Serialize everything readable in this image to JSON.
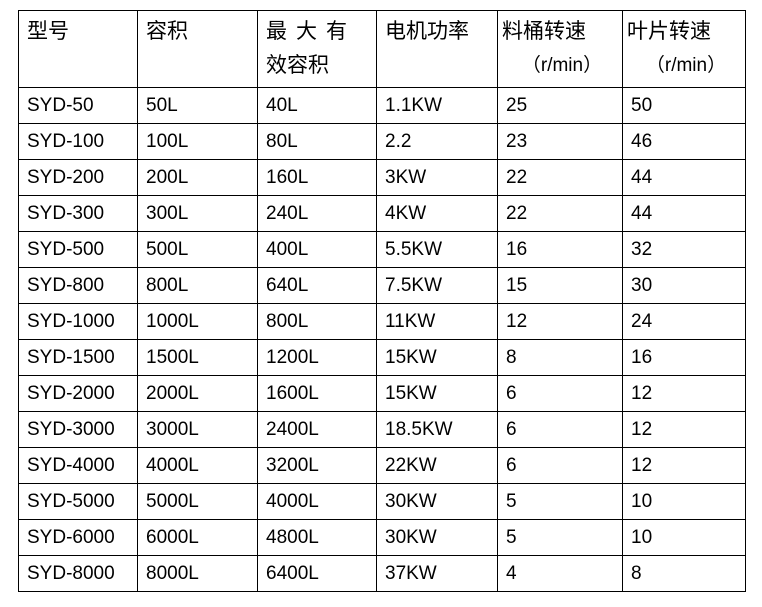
{
  "headers": [
    {
      "line1": "型号"
    },
    {
      "line1": "容积"
    },
    {
      "line1": "最大有",
      "line2": "效容积"
    },
    {
      "line1": "电机功率"
    },
    {
      "line1": "料桶转速",
      "line2": "（r/min）"
    },
    {
      "line1": "叶片转速",
      "line2": "（r/min）"
    }
  ],
  "rows": [
    [
      "SYD-50",
      "50L",
      "40L",
      "1.1KW",
      "25",
      "50"
    ],
    [
      "SYD-100",
      "100L",
      "80L",
      "2.2",
      "23",
      "46"
    ],
    [
      "SYD-200",
      "200L",
      "160L",
      "3KW",
      "22",
      "44"
    ],
    [
      "SYD-300",
      "300L",
      "240L",
      "4KW",
      "22",
      "44"
    ],
    [
      "SYD-500",
      "500L",
      "400L",
      "5.5KW",
      "16",
      "32"
    ],
    [
      "SYD-800",
      "800L",
      "640L",
      "7.5KW",
      "15",
      "30"
    ],
    [
      "SYD-1000",
      "1000L",
      "800L",
      "11KW",
      "12",
      "24"
    ],
    [
      "SYD-1500",
      "1500L",
      "1200L",
      "15KW",
      "8",
      "16"
    ],
    [
      "SYD-2000",
      "2000L",
      "1600L",
      "15KW",
      "6",
      "12"
    ],
    [
      "SYD-3000",
      "3000L",
      "2400L",
      "18.5KW",
      "6",
      "12"
    ],
    [
      "SYD-4000",
      "4000L",
      "3200L",
      "22KW",
      "6",
      "12"
    ],
    [
      "SYD-5000",
      "5000L",
      "4000L",
      "30KW",
      "5",
      "10"
    ],
    [
      "SYD-6000",
      "6000L",
      "4800L",
      "30KW",
      "5",
      "10"
    ],
    [
      "SYD-8000",
      "8000L",
      "6400L",
      "37KW",
      "4",
      "8"
    ]
  ]
}
